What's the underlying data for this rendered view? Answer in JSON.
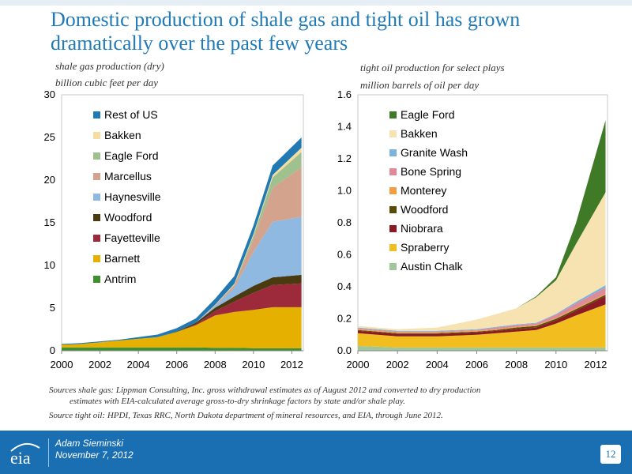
{
  "slide": {
    "title": "Domestic production of shale gas and tight oil has grown dramatically over the past few years",
    "presenter": "Adam Sieminski",
    "date": "November 7, 2012",
    "page_number": "12",
    "logo_text": "eia"
  },
  "notes": {
    "gas_source_line1": "Sources shale gas:  Lippman Consulting, Inc. gross withdrawal estimates as of August 2012 and converted to dry production",
    "gas_source_line2": "estimates with EIA-calculated average gross-to-dry shrinkage factors by state and/or shale play.",
    "oil_source": "Source tight oil:  HPDI, Texas RRC, North Dakota department of mineral resources, and EIA, through June 2012."
  },
  "chart_data": [
    {
      "type": "area",
      "stacked": true,
      "title": "",
      "ylabel_line1": "shale gas production (dry)",
      "ylabel_line2": "billion cubic feet per day",
      "xlabel": "",
      "x": [
        2000,
        2001,
        2002,
        2003,
        2004,
        2005,
        2006,
        2007,
        2008,
        2009,
        2010,
        2011,
        2012.5
      ],
      "xlim": [
        2000,
        2012.6
      ],
      "ylim": [
        0,
        30
      ],
      "xticks": [
        "2000",
        "2002",
        "2004",
        "2006",
        "2008",
        "2010",
        "2012"
      ],
      "xtick_values": [
        2000,
        2002,
        2004,
        2006,
        2008,
        2010,
        2012
      ],
      "yticks": [
        "0",
        "5",
        "10",
        "15",
        "20",
        "25",
        "30"
      ],
      "ytick_values": [
        0,
        5,
        10,
        15,
        20,
        25,
        30
      ],
      "grid": false,
      "legend_position": "top-left",
      "series": [
        {
          "name": "Antrim",
          "color": "#3f8f2f",
          "values": [
            0.4,
            0.4,
            0.4,
            0.4,
            0.4,
            0.4,
            0.4,
            0.4,
            0.35,
            0.35,
            0.3,
            0.3,
            0.3
          ]
        },
        {
          "name": "Barnett",
          "color": "#e5b000",
          "values": [
            0.3,
            0.4,
            0.6,
            0.8,
            1.0,
            1.2,
            1.8,
            2.6,
            3.8,
            4.2,
            4.5,
            4.8,
            4.8
          ]
        },
        {
          "name": "Fayetteville",
          "color": "#9c2a3a",
          "values": [
            0,
            0,
            0,
            0,
            0,
            0,
            0,
            0.1,
            0.5,
            1.2,
            2.0,
            2.6,
            2.8
          ]
        },
        {
          "name": "Woodford",
          "color": "#4a3a10",
          "values": [
            0,
            0,
            0,
            0,
            0,
            0,
            0.05,
            0.2,
            0.4,
            0.6,
            0.8,
            0.9,
            1.0
          ]
        },
        {
          "name": "Haynesville",
          "color": "#8fb9e0",
          "values": [
            0,
            0,
            0,
            0,
            0,
            0,
            0,
            0,
            0.2,
            1.0,
            4.0,
            6.5,
            6.8
          ]
        },
        {
          "name": "Marcellus",
          "color": "#d4a38e",
          "values": [
            0,
            0,
            0,
            0,
            0,
            0,
            0,
            0,
            0.1,
            0.3,
            1.5,
            4.0,
            5.8
          ]
        },
        {
          "name": "Eagle Ford",
          "color": "#9fc08f",
          "values": [
            0,
            0,
            0,
            0,
            0,
            0,
            0,
            0,
            0,
            0.1,
            0.4,
            1.2,
            1.8
          ]
        },
        {
          "name": "Bakken",
          "color": "#f5dca0",
          "values": [
            0,
            0,
            0,
            0,
            0,
            0,
            0,
            0,
            0.05,
            0.1,
            0.2,
            0.3,
            0.5
          ]
        },
        {
          "name": "Rest of US",
          "color": "#2179b4",
          "values": [
            0.1,
            0.1,
            0.1,
            0.1,
            0.2,
            0.3,
            0.4,
            0.5,
            0.7,
            0.9,
            1.0,
            1.1,
            1.2
          ]
        }
      ]
    },
    {
      "type": "area",
      "stacked": true,
      "title": "",
      "ylabel_line1": "tight oil production for select plays",
      "ylabel_line2": "million barrels of oil per day",
      "xlabel": "",
      "x": [
        2000,
        2001,
        2002,
        2003,
        2004,
        2005,
        2006,
        2007,
        2008,
        2009,
        2010,
        2011,
        2012.5
      ],
      "xlim": [
        2000,
        2012.6
      ],
      "ylim": [
        0,
        1.6
      ],
      "xticks": [
        "2000",
        "2002",
        "2004",
        "2006",
        "2008",
        "2010",
        "2012"
      ],
      "xtick_values": [
        2000,
        2002,
        2004,
        2006,
        2008,
        2010,
        2012
      ],
      "yticks": [
        "0.0",
        "0.2",
        "0.4",
        "0.6",
        "0.8",
        "1.0",
        "1.2",
        "1.4",
        "1.6"
      ],
      "ytick_values": [
        0,
        0.2,
        0.4,
        0.6,
        0.8,
        1.0,
        1.2,
        1.4,
        1.6
      ],
      "grid": false,
      "legend_position": "top-left",
      "series": [
        {
          "name": "Austin Chalk",
          "color": "#9fc79a",
          "values": [
            0.03,
            0.025,
            0.02,
            0.02,
            0.02,
            0.02,
            0.02,
            0.02,
            0.02,
            0.02,
            0.02,
            0.02,
            0.02
          ]
        },
        {
          "name": "Spraberry",
          "color": "#f2bd1e",
          "values": [
            0.08,
            0.075,
            0.07,
            0.07,
            0.07,
            0.075,
            0.08,
            0.09,
            0.1,
            0.11,
            0.15,
            0.2,
            0.27
          ]
        },
        {
          "name": "Niobrara",
          "color": "#8b1a24",
          "values": [
            0.015,
            0.015,
            0.015,
            0.015,
            0.015,
            0.015,
            0.015,
            0.015,
            0.015,
            0.015,
            0.02,
            0.03,
            0.05
          ]
        },
        {
          "name": "Woodford",
          "color": "#5a4a0a",
          "values": [
            0.005,
            0.005,
            0.005,
            0.005,
            0.005,
            0.005,
            0.005,
            0.005,
            0.01,
            0.01,
            0.01,
            0.01,
            0.01
          ]
        },
        {
          "name": "Monterey",
          "color": "#f0a042",
          "values": [
            0.005,
            0.005,
            0.005,
            0.005,
            0.005,
            0.005,
            0.005,
            0.005,
            0.005,
            0.005,
            0.005,
            0.005,
            0.005
          ]
        },
        {
          "name": "Bone Spring",
          "color": "#e08a98",
          "values": [
            0.005,
            0.005,
            0.005,
            0.005,
            0.005,
            0.005,
            0.005,
            0.01,
            0.01,
            0.01,
            0.02,
            0.03,
            0.04
          ]
        },
        {
          "name": "Granite Wash",
          "color": "#7ab3de",
          "values": [
            0.005,
            0.005,
            0.005,
            0.005,
            0.005,
            0.005,
            0.005,
            0.005,
            0.005,
            0.005,
            0.005,
            0.01,
            0.015
          ]
        },
        {
          "name": "Bakken",
          "color": "#f7e3b2",
          "values": [
            0.01,
            0.01,
            0.01,
            0.015,
            0.02,
            0.04,
            0.06,
            0.08,
            0.1,
            0.16,
            0.21,
            0.36,
            0.58
          ]
        },
        {
          "name": "Eagle Ford",
          "color": "#3f7a26",
          "values": [
            0,
            0,
            0,
            0,
            0,
            0,
            0,
            0,
            0,
            0.005,
            0.02,
            0.13,
            0.45
          ]
        }
      ]
    }
  ]
}
